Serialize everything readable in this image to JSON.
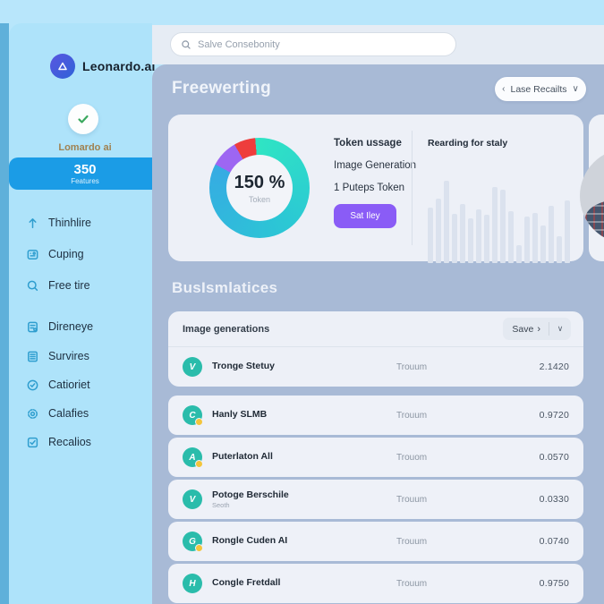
{
  "app": {
    "logo_text": "Leonardo.ai"
  },
  "icons": {
    "chevron_left": "‹",
    "chevron_down": "∨",
    "save_arrow": "›"
  },
  "search": {
    "placeholder": "Salve Consebonity"
  },
  "sidebar": {
    "profile": {
      "name": "Lomardo ai",
      "stat_value": "350",
      "stat_label": "Features"
    },
    "groups": [
      {
        "items": [
          {
            "label": "Thinhlire",
            "icon": "arrow-up-icon"
          },
          {
            "label": "Cuping",
            "icon": "card-icon"
          },
          {
            "label": "Free tire",
            "icon": "search-circle-icon"
          }
        ]
      },
      {
        "items": [
          {
            "label": "Direneye",
            "icon": "document-icon"
          },
          {
            "label": "Survires",
            "icon": "list-icon"
          },
          {
            "label": "Catioriet",
            "icon": "clock-check-icon"
          },
          {
            "label": "Calafies",
            "icon": "gear-icon"
          },
          {
            "label": "Recalios",
            "icon": "checkbox-icon"
          }
        ]
      }
    ]
  },
  "header": {
    "title": "Freewerting",
    "filter_label": "Lase Recailts"
  },
  "usage_card": {
    "donut": {
      "value": "150 %",
      "label": "Token"
    },
    "lines": [
      "Token ussage",
      "Image Generation",
      "1 Puteps Token"
    ],
    "cta_label": "Sat Iley",
    "chart_title": "Rearding for staly"
  },
  "stats_section": {
    "title": "BusIsmlatices",
    "table": {
      "header": "Image generations",
      "save_label": "Save",
      "rows": [
        {
          "glyph": "V",
          "name": "Tronge Stetuy",
          "sub": "",
          "middle": "Trouum",
          "value": "2.1420"
        },
        {
          "glyph": "C",
          "name": "Hanly SLMB",
          "sub": "",
          "middle": "Trouum",
          "value": "0.9720"
        },
        {
          "glyph": "A",
          "name": "Puterlaton All",
          "sub": "",
          "middle": "Trouom",
          "value": "0.0570"
        },
        {
          "glyph": "V",
          "name": "Potoge Berschile",
          "sub": "Seoth",
          "middle": "Trouum",
          "value": "0.0330"
        },
        {
          "glyph": "G",
          "name": "Rongle Cuden AI",
          "sub": "",
          "middle": "Trouum",
          "value": "0.0740"
        },
        {
          "glyph": "H",
          "name": "Congle Fretdall",
          "sub": "",
          "middle": "Trouum",
          "value": "0.9750"
        }
      ]
    }
  },
  "colors": {
    "accent_blue": "#1b9ce6",
    "purple": "#8a5cf6",
    "teal_icon": "#2abcab",
    "yellow_dot": "#f3c53c",
    "donut_stops": "#2fe4c4 0deg, #2bc8d4 140deg, #36abe3 298deg, #9d66f2 298deg 330deg, #ee3d3c 330deg 355deg, #2fe4c4 355deg 360deg",
    "bar_color": "#dbe2ee"
  },
  "chart_data": [
    {
      "type": "pie",
      "title": "Token usage donut",
      "center_value": "150 %",
      "center_label": "Token",
      "segments": [
        {
          "name": "teal-used",
          "value": 84.2,
          "color": "#2fe4c4"
        },
        {
          "name": "purple-slice",
          "value": 8.9,
          "color": "#9d66f2"
        },
        {
          "name": "red-slice",
          "value": 6.9,
          "color": "#ee3d3c"
        }
      ],
      "legend": false
    },
    {
      "type": "bar",
      "title": "Rearding for staly",
      "values": [
        62,
        72,
        92,
        55,
        66,
        50,
        60,
        54,
        85,
        82,
        58,
        20,
        52,
        56,
        42,
        64,
        30,
        70
      ],
      "ylim": [
        0,
        100
      ],
      "color": "#dbe2ee",
      "axis_labels": false
    }
  ]
}
